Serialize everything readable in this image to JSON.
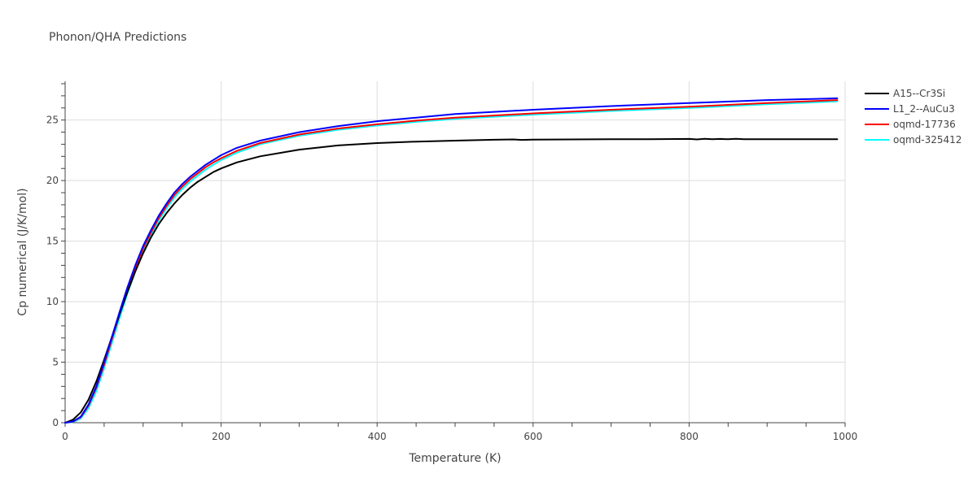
{
  "chart_data": {
    "type": "line",
    "title": "Phonon/QHA Predictions",
    "xlabel": "Temperature (K)",
    "ylabel": "Cp numerical (J/K/mol)",
    "xlim": [
      0,
      1000
    ],
    "ylim": [
      0,
      28.2
    ],
    "x_ticks": [
      0,
      200,
      400,
      600,
      800,
      1000
    ],
    "y_ticks": [
      0,
      5,
      10,
      15,
      20,
      25
    ],
    "grid": true,
    "legend_position": "right",
    "series": [
      {
        "name": "A15--Cr3Si",
        "color": "#000000",
        "x": [
          0,
          10,
          20,
          30,
          40,
          50,
          60,
          70,
          80,
          90,
          100,
          110,
          120,
          130,
          140,
          150,
          160,
          170,
          180,
          190,
          200,
          220,
          250,
          300,
          350,
          400,
          450,
          500,
          550,
          575,
          585,
          600,
          650,
          700,
          750,
          800,
          810,
          820,
          830,
          840,
          850,
          860,
          870,
          900,
          950,
          990
        ],
        "y": [
          0,
          0.25,
          0.85,
          1.9,
          3.4,
          5.2,
          7.1,
          9.0,
          10.8,
          12.5,
          14.0,
          15.3,
          16.4,
          17.3,
          18.1,
          18.8,
          19.4,
          19.9,
          20.3,
          20.7,
          21.0,
          21.5,
          22.0,
          22.55,
          22.9,
          23.1,
          23.22,
          23.3,
          23.37,
          23.4,
          23.36,
          23.38,
          23.4,
          23.41,
          23.42,
          23.44,
          23.4,
          23.45,
          23.41,
          23.44,
          23.41,
          23.45,
          23.41,
          23.42,
          23.42,
          23.42
        ]
      },
      {
        "name": "L1_2--AuCu3",
        "color": "#0000ff",
        "x": [
          0,
          10,
          20,
          30,
          40,
          50,
          60,
          70,
          80,
          90,
          100,
          110,
          120,
          130,
          140,
          150,
          160,
          170,
          180,
          190,
          200,
          220,
          250,
          300,
          350,
          400,
          450,
          500,
          600,
          700,
          800,
          900,
          990
        ],
        "y": [
          0,
          0.1,
          0.5,
          1.5,
          3.0,
          5.0,
          7.1,
          9.2,
          11.2,
          13.0,
          14.6,
          15.9,
          17.1,
          18.1,
          19.0,
          19.7,
          20.3,
          20.8,
          21.3,
          21.7,
          22.1,
          22.7,
          23.3,
          24.0,
          24.5,
          24.9,
          25.2,
          25.5,
          25.85,
          26.15,
          26.4,
          26.65,
          26.8
        ]
      },
      {
        "name": "oqmd-17736",
        "color": "#ff0000",
        "x": [
          0,
          10,
          20,
          30,
          40,
          50,
          60,
          70,
          80,
          90,
          100,
          110,
          120,
          130,
          140,
          150,
          160,
          170,
          180,
          190,
          200,
          220,
          250,
          300,
          350,
          400,
          450,
          500,
          600,
          700,
          800,
          900,
          990
        ],
        "y": [
          0,
          0.08,
          0.45,
          1.4,
          2.9,
          4.8,
          6.9,
          9.0,
          11.0,
          12.8,
          14.4,
          15.7,
          16.9,
          17.9,
          18.8,
          19.5,
          20.1,
          20.6,
          21.1,
          21.5,
          21.85,
          22.45,
          23.1,
          23.8,
          24.3,
          24.65,
          24.95,
          25.2,
          25.55,
          25.85,
          26.1,
          26.4,
          26.65
        ]
      },
      {
        "name": "oqmd-325412",
        "color": "#00ffff",
        "x": [
          0,
          10,
          20,
          30,
          40,
          50,
          60,
          70,
          80,
          90,
          100,
          110,
          120,
          130,
          140,
          150,
          160,
          170,
          180,
          190,
          200,
          220,
          250,
          300,
          350,
          400,
          450,
          500,
          600,
          700,
          800,
          900,
          990
        ],
        "y": [
          0,
          0.05,
          0.35,
          1.2,
          2.6,
          4.5,
          6.6,
          8.7,
          10.7,
          12.5,
          14.1,
          15.5,
          16.7,
          17.7,
          18.6,
          19.3,
          19.9,
          20.4,
          20.9,
          21.3,
          21.7,
          22.3,
          23.0,
          23.7,
          24.2,
          24.55,
          24.85,
          25.1,
          25.45,
          25.75,
          26.0,
          26.3,
          26.55
        ]
      }
    ]
  }
}
